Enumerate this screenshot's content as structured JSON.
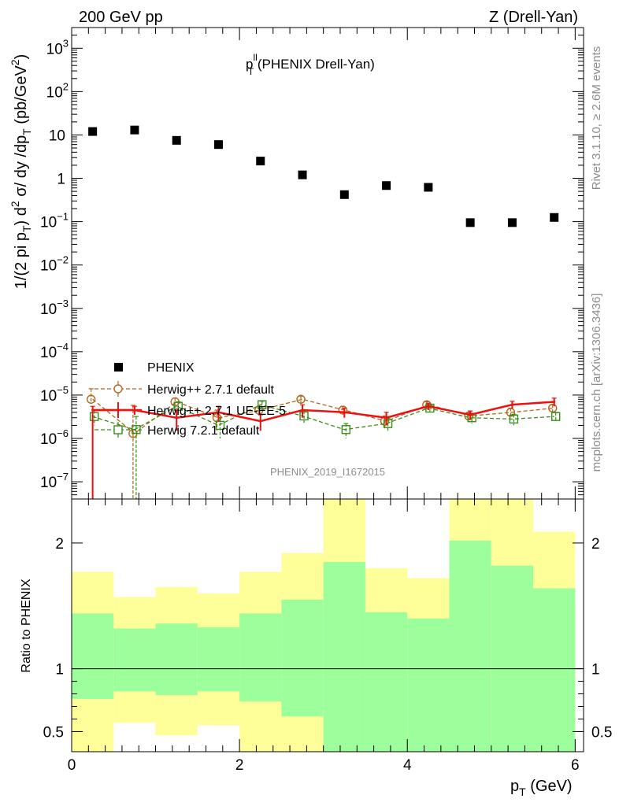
{
  "header": {
    "left": "200 GeV pp",
    "right": "Z (Drell-Yan)"
  },
  "side": {
    "rivet": "Rivet 3.1.10, ≥ 2.6M events",
    "mcplots": "mcplots.cern.ch [arXiv:1306.3436]"
  },
  "colors": {
    "data": "#000000",
    "herwig_pp_default": "#b5651d",
    "herwig_pp_ueee5": "#ee1111",
    "herwig_721": "#3a8c1a",
    "band_inner": "#9cff9c",
    "band_outer": "#ffff99"
  },
  "chart_data": [
    {
      "type": "scatter",
      "title": "p_T^ll (PHENIX Drell-Yan)",
      "title_parts": {
        "base": "p",
        "sup": "ll",
        "sub": "T",
        "rest": " (PHENIX Drell-Yan)"
      },
      "ylabel": "1/(2 pi p_T) d^2 σ/ dy /dp_T (pb/GeV^2)",
      "xlabel": "p_T (GeV)",
      "analysis_label": "PHENIX_2019_I1672015",
      "yscale": "log",
      "ylim": [
        4e-08,
        3000
      ],
      "xlim": [
        0,
        6.1
      ],
      "yticks": [
        {
          "v": 1e-07,
          "b": "10",
          "e": "−7"
        },
        {
          "v": 1e-06,
          "b": "10",
          "e": "−6"
        },
        {
          "v": 1e-05,
          "b": "10",
          "e": "−5"
        },
        {
          "v": 0.0001,
          "b": "10",
          "e": "−4"
        },
        {
          "v": 0.001,
          "b": "10",
          "e": "−3"
        },
        {
          "v": 0.01,
          "b": "10",
          "e": "−2"
        },
        {
          "v": 0.1,
          "b": "10",
          "e": "−1"
        },
        {
          "v": 1,
          "b": "1",
          "e": ""
        },
        {
          "v": 10,
          "b": "10",
          "e": ""
        },
        {
          "v": 100,
          "b": "10",
          "e": "2"
        },
        {
          "v": 1000,
          "b": "10",
          "e": "3"
        }
      ],
      "legend": [
        {
          "name": "PHENIX",
          "marker": "square-filled"
        },
        {
          "name": "Herwig++ 2.7.1 default",
          "marker": "circle-open"
        },
        {
          "name": "Herwig++ 2.7.1 UE-EE-5",
          "marker": "line"
        },
        {
          "name": "Herwig 7.2.1 default",
          "marker": "square-open"
        }
      ],
      "x": [
        0.25,
        0.75,
        1.25,
        1.75,
        2.25,
        2.75,
        3.25,
        3.75,
        4.25,
        4.75,
        5.25,
        5.75
      ],
      "series": [
        {
          "name": "PHENIX",
          "values": [
            12,
            13,
            7.5,
            6,
            2.5,
            1.2,
            0.42,
            0.68,
            0.62,
            0.095,
            0.095,
            0.125
          ]
        },
        {
          "name": "Herwig++ 2.7.1 default",
          "values": [
            8e-06,
            1.3e-06,
            7e-06,
            3e-06,
            4.5e-06,
            8e-06,
            4.5e-06,
            2.5e-06,
            6e-06,
            3.3e-06,
            4e-06,
            5e-06
          ],
          "err_lo": [
            1.4e-06,
            1.3e-06,
            1.5e-06,
            1.5e-06,
            1e-06,
            1.5e-06,
            1e-06,
            8e-07,
            1e-06,
            6e-07,
            1e-06,
            1e-06
          ],
          "err_hi": [
            6e-06,
            4.5e-06,
            1.5e-06,
            1.5e-06,
            1e-06,
            1.5e-06,
            1e-06,
            8e-07,
            1e-06,
            6e-07,
            1e-06,
            1e-06
          ]
        },
        {
          "name": "Herwig++ 2.7.1 UE-EE-5",
          "values": [
            4.5e-06,
            4.5e-06,
            3e-06,
            4e-06,
            2.5e-06,
            4.5e-06,
            4e-06,
            3e-06,
            5.5e-06,
            3.5e-06,
            6e-06,
            7e-06
          ],
          "err_lo": [
            4.5e-06,
            1e-06,
            1.5e-06,
            1.5e-06,
            1e-06,
            1.5e-06,
            1e-06,
            1e-06,
            1e-06,
            8e-07,
            1.2e-06,
            1.5e-06
          ],
          "err_hi": [
            1e-06,
            1e-06,
            1.5e-06,
            1.5e-06,
            1e-06,
            1.5e-06,
            1e-06,
            1e-06,
            1e-06,
            8e-07,
            1.2e-06,
            1.5e-06
          ]
        },
        {
          "name": "Herwig 7.2.1 default",
          "values": [
            3.2e-06,
            1.6e-06,
            5.5e-06,
            2e-06,
            6e-06,
            3.3e-06,
            1.6e-06,
            2.2e-06,
            5e-06,
            3e-06,
            2.8e-06,
            3.2e-06
          ],
          "err_lo": [
            1.2e-06,
            1.6e-06,
            1.5e-06,
            1e-06,
            1.2e-06,
            1e-06,
            6e-07,
            7e-07,
            1e-06,
            8e-07,
            8e-07,
            8e-07
          ],
          "err_hi": [
            1.2e-06,
            1.6e-06,
            1.5e-06,
            1e-06,
            1.2e-06,
            1e-06,
            6e-07,
            7e-07,
            1e-06,
            8e-07,
            8e-07,
            8e-07
          ]
        }
      ]
    },
    {
      "type": "area",
      "ylabel": "Ratio to PHENIX",
      "xlabel": "p_T (GeV)",
      "xlim": [
        0,
        6.1
      ],
      "ylim": [
        0.34,
        2.35
      ],
      "yticks": [
        0.5,
        1,
        2
      ],
      "xticks": [
        0,
        2,
        4,
        6
      ],
      "bins": [
        [
          0,
          0.5
        ],
        [
          0.5,
          1
        ],
        [
          1,
          1.5
        ],
        [
          1.5,
          2
        ],
        [
          2,
          2.5
        ],
        [
          2.5,
          3
        ],
        [
          3,
          3.5
        ],
        [
          3.5,
          4
        ],
        [
          4,
          4.5
        ],
        [
          4.5,
          5
        ],
        [
          5,
          5.5
        ],
        [
          5.5,
          6
        ]
      ],
      "band_inner": {
        "lo": [
          0.76,
          0.82,
          0.79,
          0.82,
          0.74,
          0.62,
          0.34,
          0.34,
          0.34,
          0.34,
          0.34,
          0.34
        ],
        "hi": [
          1.44,
          1.32,
          1.36,
          1.33,
          1.44,
          1.55,
          1.85,
          1.45,
          1.4,
          2.02,
          1.82,
          1.64
        ]
      },
      "band_outer": {
        "lo": [
          0.34,
          0.57,
          0.47,
          0.55,
          0.34,
          0.34,
          0.34,
          0.34,
          0.34,
          0.34,
          0.34,
          0.42
        ],
        "hi": [
          1.77,
          1.57,
          1.65,
          1.6,
          1.77,
          1.92,
          2.35,
          1.8,
          1.72,
          2.35,
          2.35,
          2.09
        ]
      }
    }
  ]
}
